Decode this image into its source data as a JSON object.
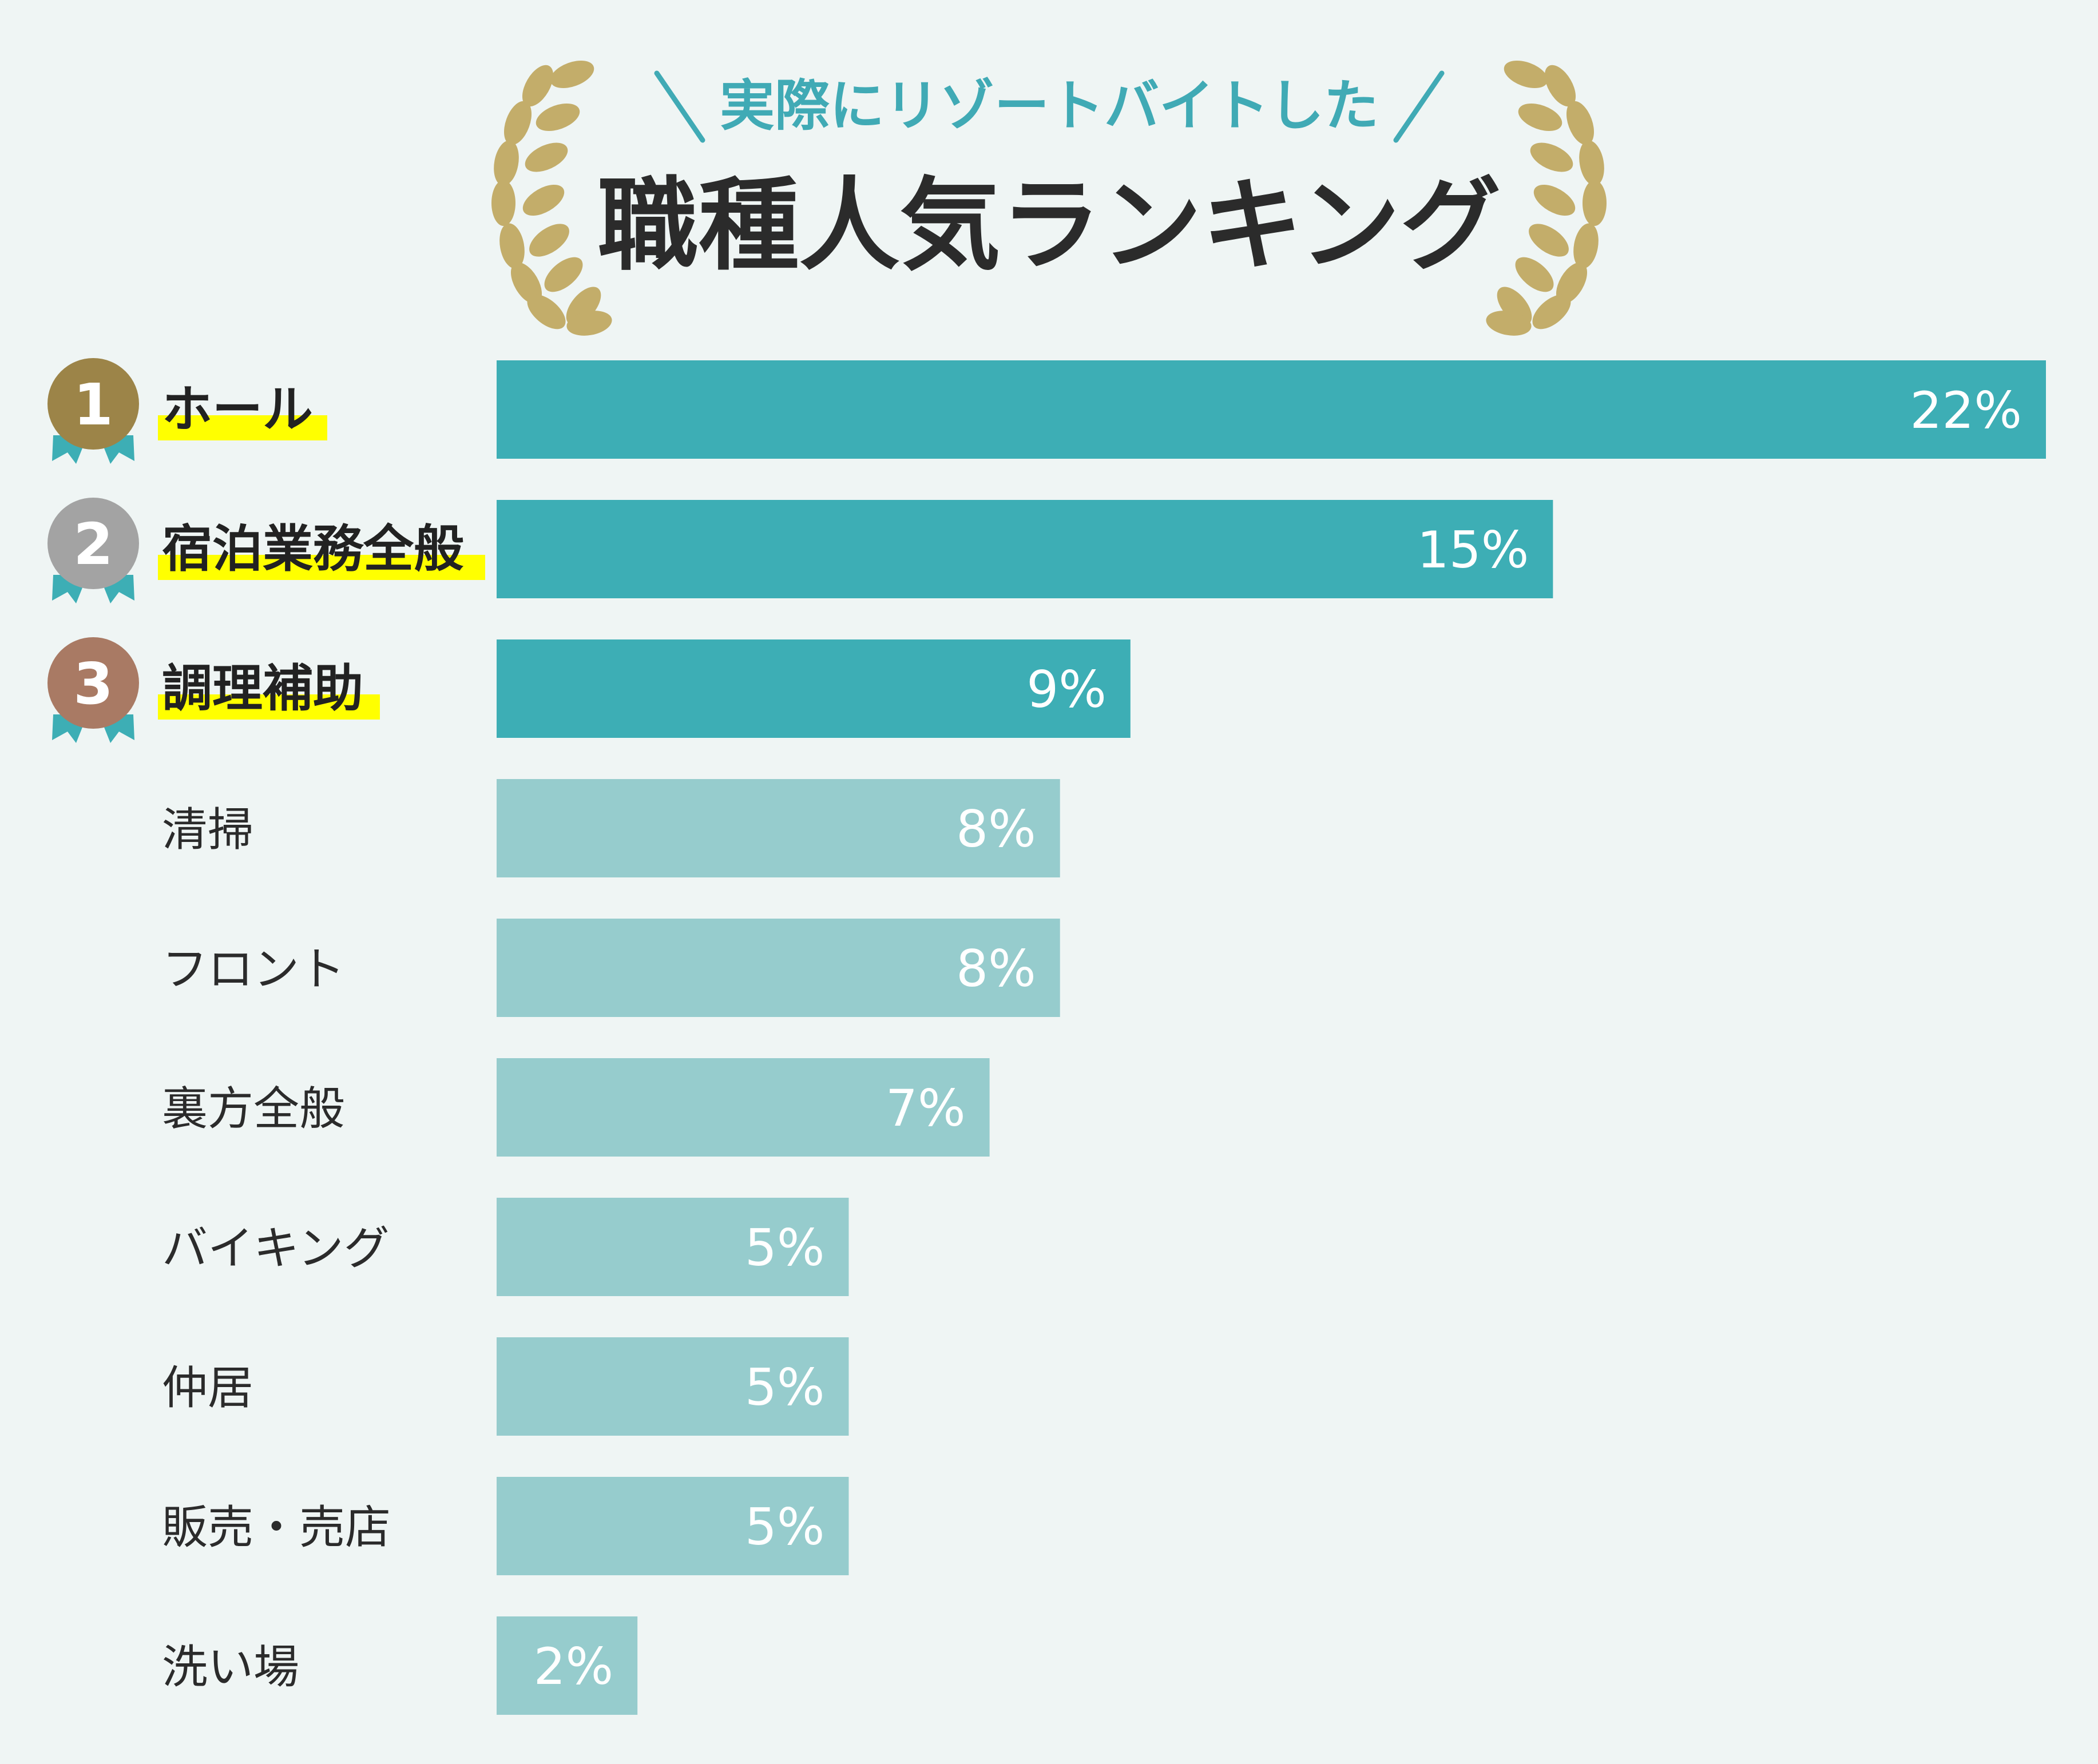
{
  "header": {
    "subtitle": "実際にリゾートバイトした",
    "title": "職種人気ランキング"
  },
  "colors": {
    "background": "#eff5f4",
    "accent": "#40aab5",
    "bar_top": "#3daeb5",
    "bar_other": "#96cccd",
    "highlight": "#ffff00",
    "laurel": "#c3ad6a",
    "medal_gold": "#9c8448",
    "medal_silver": "#a3a3a3",
    "medal_bronze": "#a97a64",
    "ribbon": "#3daeb5"
  },
  "chart_data": {
    "type": "bar",
    "orientation": "horizontal",
    "categories": [
      "ホール",
      "宿泊業務全般",
      "調理補助",
      "清掃",
      "フロント",
      "裏方全般",
      "バイキング",
      "仲居",
      "販売・売店",
      "洗い場"
    ],
    "values": [
      22,
      15,
      9,
      8,
      8,
      7,
      5,
      5,
      5,
      2
    ],
    "value_labels": [
      "22%",
      "15%",
      "9%",
      "8%",
      "8%",
      "7%",
      "5%",
      "5%",
      "5%",
      "2%"
    ],
    "ranks": [
      "1",
      "2",
      "3"
    ],
    "title": "職種人気ランキング",
    "subtitle": "実際にリゾートバイトした",
    "xlim": [
      0,
      22
    ]
  }
}
